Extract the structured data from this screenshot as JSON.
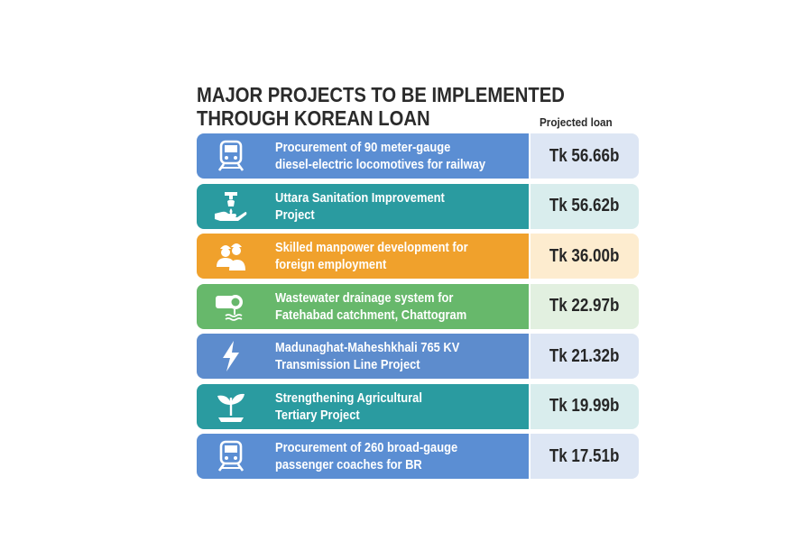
{
  "title_lines": [
    "MAJOR PROJECTS TO BE IMPLEMENTED",
    "THROUGH KOREAN LOAN"
  ],
  "column_header": "Projected loan",
  "chart_data": {
    "type": "table",
    "title": "MAJOR PROJECTS TO BE IMPLEMENTED THROUGH KOREAN LOAN",
    "columns": [
      "",
      "Projected loan"
    ],
    "currency": "Tk",
    "unit": "b",
    "rows": [
      {
        "icon": "train-icon",
        "lines": [
          "Procurement of 90 meter-gauge",
          "diesel-electric locomotives for railway"
        ],
        "loan_label": "Tk 56.66b",
        "value": 56.66,
        "color": "#5b8ed3",
        "loan_bg": "#dde6f4"
      },
      {
        "icon": "sanitation-hands-icon",
        "lines": [
          "Uttara Sanitation Improvement",
          "Project"
        ],
        "loan_label": "Tk 56.62b",
        "value": 56.62,
        "color": "#2a9ba0",
        "loan_bg": "#d9eded"
      },
      {
        "icon": "workers-icon",
        "lines": [
          "Skilled manpower development for",
          "foreign employment"
        ],
        "loan_label": "Tk 36.00b",
        "value": 36.0,
        "color": "#f0a12c",
        "loan_bg": "#fdeccf"
      },
      {
        "icon": "drain-pipe-icon",
        "lines": [
          "Wastewater drainage system for",
          "Fatehabad catchment, Chattogram"
        ],
        "loan_label": "Tk 22.97b",
        "value": 22.97,
        "color": "#67b86b",
        "loan_bg": "#e2f0e0"
      },
      {
        "icon": "lightning-icon",
        "lines": [
          "Madunaghat-Maheshkhali 765 KV",
          "Transmission Line Project"
        ],
        "loan_label": "Tk 21.32b",
        "value": 21.32,
        "color": "#5d8ccd",
        "loan_bg": "#dde6f4"
      },
      {
        "icon": "plant-icon",
        "lines": [
          "Strengthening Agricultural",
          "Tertiary Project"
        ],
        "loan_label": "Tk 19.99b",
        "value": 19.99,
        "color": "#2a9ba0",
        "loan_bg": "#d9eded"
      },
      {
        "icon": "train-icon",
        "lines": [
          "Procurement of 260 broad-gauge",
          "passenger coaches for BR"
        ],
        "loan_label": "Tk 17.51b",
        "value": 17.51,
        "color": "#5b8ed3",
        "loan_bg": "#dde6f4"
      }
    ]
  }
}
